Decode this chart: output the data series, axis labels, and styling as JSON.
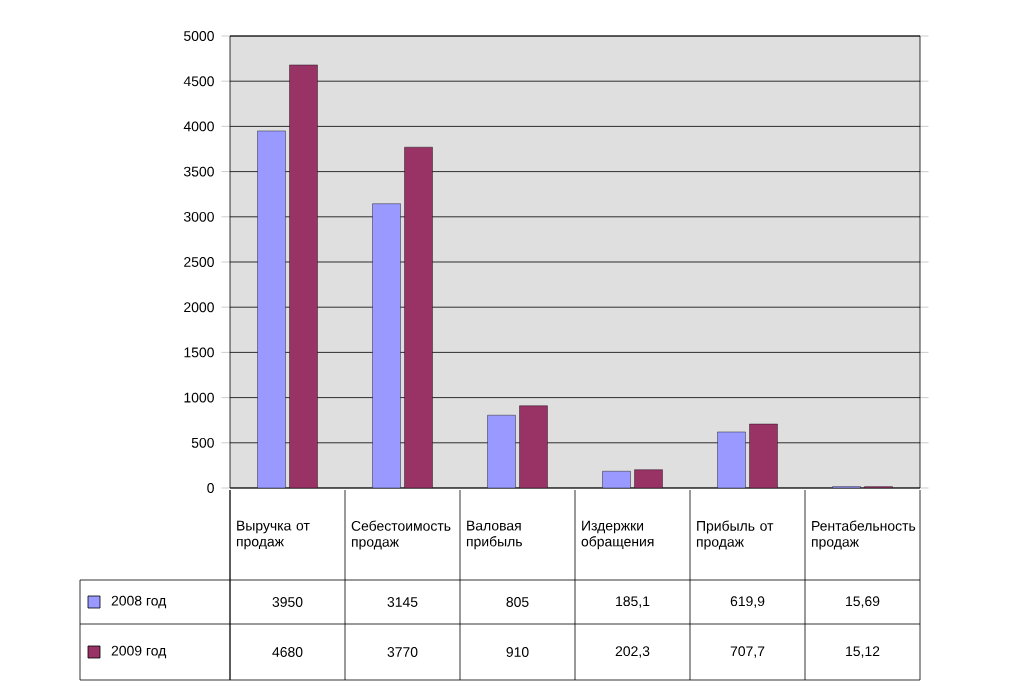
{
  "chart_data": {
    "type": "bar",
    "categories": [
      "Выручка от продаж",
      "Себестоимость продаж",
      "Валовая прибыль",
      "Издержки обращения",
      "Прибыль от продаж",
      "Рентабельность продаж"
    ],
    "series": [
      {
        "name": "2008 год",
        "color": "#9999ff",
        "values": [
          3950,
          3145,
          805,
          185.1,
          619.9,
          15.69
        ],
        "value_labels": [
          "3950",
          "3145",
          "805",
          "185,1",
          "619,9",
          "15,69"
        ]
      },
      {
        "name": "2009 год",
        "color": "#993366",
        "values": [
          4680,
          3770,
          910,
          202.3,
          707.7,
          15.12
        ],
        "value_labels": [
          "4680",
          "3770",
          "910",
          "202,3",
          "707,7",
          "15,12"
        ]
      }
    ],
    "ylim": [
      0,
      5000
    ],
    "yticks": [
      0,
      500,
      1000,
      1500,
      2000,
      2500,
      3000,
      3500,
      4000,
      4500,
      5000
    ],
    "grid": "y",
    "legend": "bottom"
  }
}
